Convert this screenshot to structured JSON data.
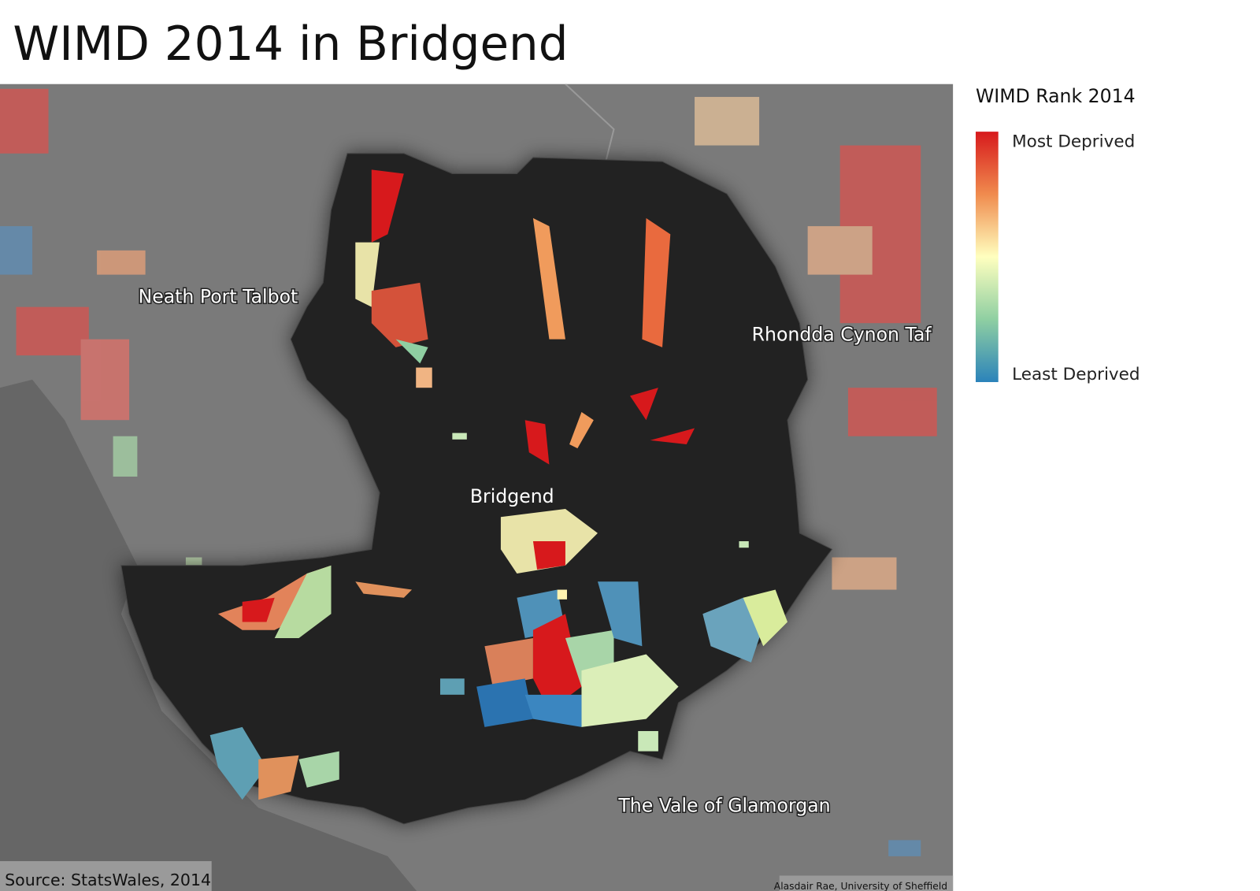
{
  "title": "WIMD 2014 in Bridgend",
  "map": {
    "labels": [
      "Neath Port Talbot",
      "Rhondda Cynon Taf",
      "Bridgend",
      "The Vale of Glamorgan"
    ]
  },
  "legend": {
    "title": "WIMD Rank 2014",
    "high": "Most Deprived",
    "low": "Least Deprived"
  },
  "source": "Source: StatsWales, 2014",
  "credit": "Alasdair Rae, University of Sheffield"
}
